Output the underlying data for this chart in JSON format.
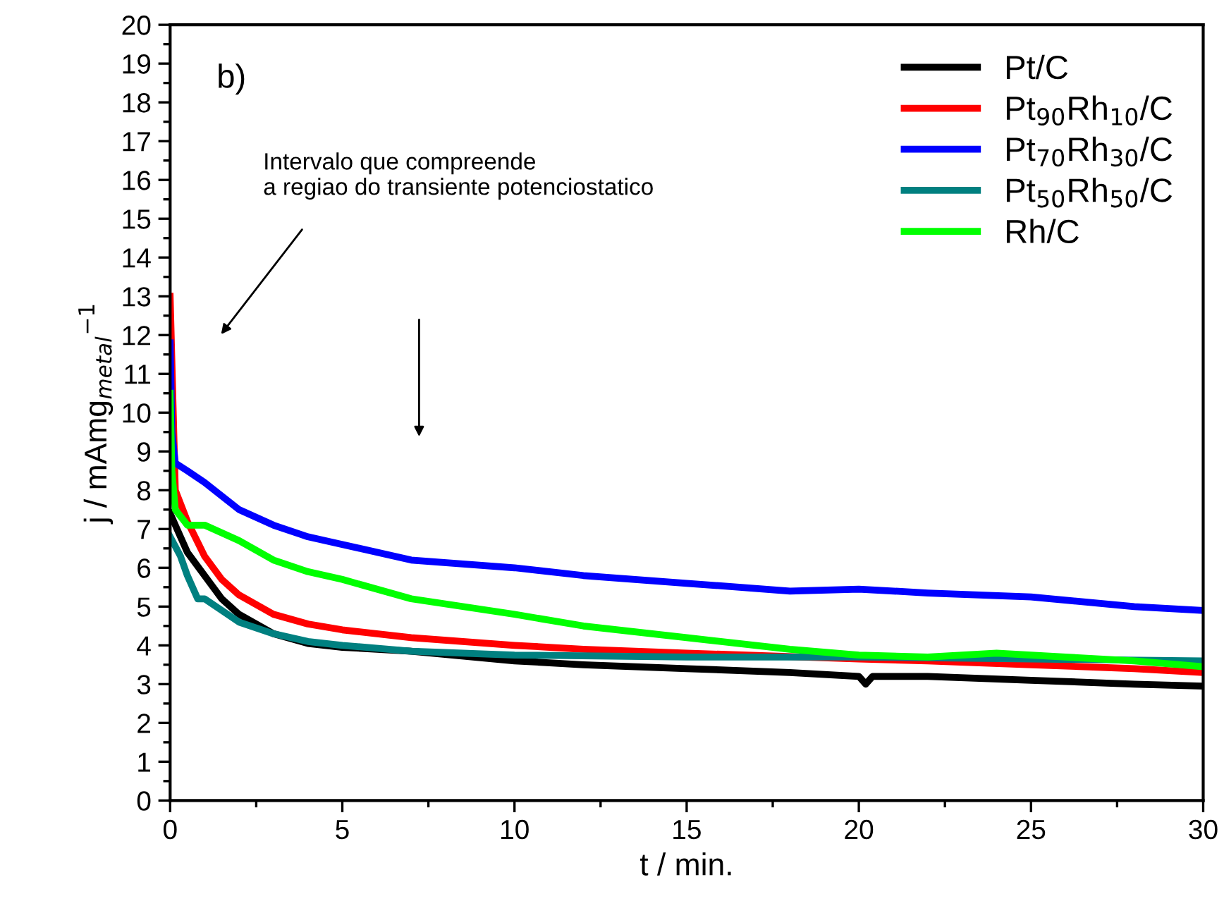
{
  "chart_data": {
    "type": "line",
    "xlabel": "t / min.",
    "ylabel": "j / mAmg$_{metal}$$^{−1}$",
    "xlim": [
      0,
      30
    ],
    "xticks": [
      0,
      5,
      10,
      15,
      20,
      25,
      30
    ],
    "ylim": [
      0,
      20
    ],
    "yticks": [
      0,
      1,
      2,
      3,
      4,
      5,
      6,
      7,
      8,
      9,
      10,
      11,
      12,
      13,
      14,
      15,
      16,
      17,
      18,
      19,
      20
    ],
    "grid": false,
    "legend": "top right",
    "line_style": "solid",
    "marker": "none",
    "annotations": [
      "b)",
      "Intervalo que compreende\na regiao do transiente potenciostatico"
    ],
    "series": [
      {
        "name": "Pt/C",
        "color": "#000000",
        "x": [
          0,
          0.05,
          0.5,
          1,
          1.5,
          2,
          3,
          4,
          5,
          7,
          10,
          12,
          15,
          18,
          20,
          20.2,
          20.4,
          22,
          25,
          28,
          30
        ],
        "values": [
          7.4,
          7.3,
          6.4,
          5.8,
          5.2,
          4.8,
          4.3,
          4.05,
          3.95,
          3.85,
          3.6,
          3.5,
          3.4,
          3.3,
          3.2,
          3.0,
          3.2,
          3.2,
          3.1,
          3.0,
          2.95
        ]
      },
      {
        "name": "Pt$_{90}$Rh$_{10}$/C",
        "color": "#ff0000",
        "x": [
          0,
          0.15,
          0.5,
          1,
          1.5,
          2,
          3,
          4,
          5,
          7,
          10,
          12,
          15,
          20,
          22,
          25,
          28,
          30
        ],
        "values": [
          13,
          8.0,
          7.2,
          6.3,
          5.7,
          5.3,
          4.8,
          4.55,
          4.4,
          4.2,
          4.0,
          3.9,
          3.8,
          3.65,
          3.6,
          3.5,
          3.4,
          3.3
        ]
      },
      {
        "name": "Pt$_{70}$Rh$_{30}$/C",
        "color": "#0000ff",
        "x": [
          0,
          0.05,
          0.15,
          0.5,
          1,
          2,
          3,
          4,
          5,
          7,
          10,
          12,
          15,
          18,
          20,
          22,
          25,
          28,
          30
        ],
        "values": [
          11.8,
          9.5,
          8.7,
          8.5,
          8.2,
          7.5,
          7.1,
          6.8,
          6.6,
          6.2,
          6.0,
          5.8,
          5.6,
          5.4,
          5.45,
          5.35,
          5.25,
          5.0,
          4.9
        ]
      },
      {
        "name": "Pt$_{50}$Rh$_{50}$/C",
        "color": "#008080",
        "x": [
          0,
          0.3,
          0.5,
          0.8,
          1,
          1.5,
          2,
          3,
          4,
          5,
          7,
          10,
          15,
          20,
          25,
          30
        ],
        "values": [
          6.8,
          6.3,
          5.8,
          5.2,
          5.2,
          4.9,
          4.6,
          4.3,
          4.1,
          4.0,
          3.85,
          3.75,
          3.7,
          3.7,
          3.65,
          3.6
        ]
      },
      {
        "name": "Rh/C",
        "color": "#00ff00",
        "x": [
          0,
          0.05,
          0.15,
          0.5,
          1,
          2,
          3,
          4,
          5,
          7,
          10,
          12,
          15,
          18,
          20,
          22,
          24,
          26,
          28,
          30
        ],
        "values": [
          10.5,
          8.5,
          7.5,
          7.1,
          7.1,
          6.7,
          6.2,
          5.9,
          5.7,
          5.2,
          4.8,
          4.5,
          4.2,
          3.9,
          3.75,
          3.7,
          3.8,
          3.7,
          3.6,
          3.45
        ]
      }
    ]
  }
}
